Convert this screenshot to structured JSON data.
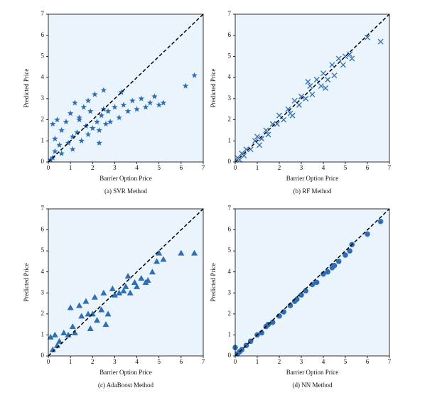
{
  "chart_data": [
    {
      "type": "scatter",
      "marker": "star",
      "color": "#2f6db5",
      "identity_line": true,
      "xlabel": "Barrier Option Price",
      "ylabel": "Predicted Price",
      "caption": "(a) SVR Method",
      "xlim": [
        0,
        7
      ],
      "ylim": [
        0,
        7
      ],
      "xticks": [
        0,
        1,
        2,
        3,
        4,
        5,
        6,
        7
      ],
      "yticks": [
        0,
        1,
        2,
        3,
        4,
        5,
        6,
        7
      ],
      "x": [
        0.1,
        0.2,
        0.3,
        0.4,
        0.5,
        0.6,
        0.8,
        0.9,
        1.0,
        1.1,
        1.2,
        1.3,
        1.4,
        1.5,
        1.6,
        1.7,
        1.8,
        1.9,
        2.0,
        2.1,
        2.2,
        2.3,
        2.4,
        2.5,
        2.6,
        2.7,
        2.8,
        3.0,
        3.2,
        3.4,
        3.6,
        3.8,
        4.0,
        4.2,
        4.4,
        4.6,
        4.8,
        5.0,
        5.2,
        1.1,
        1.8,
        2.3,
        0.3,
        0.6,
        2.5,
        3.3,
        6.2,
        6.6,
        0.2,
        1.4
      ],
      "y": [
        0.1,
        1.8,
        0.5,
        2.0,
        0.8,
        1.5,
        1.9,
        0.9,
        2.3,
        1.2,
        2.8,
        1.4,
        2.1,
        1.0,
        2.6,
        1.7,
        1.3,
        2.4,
        1.6,
        3.2,
        1.9,
        1.5,
        2.2,
        3.4,
        1.8,
        2.4,
        1.9,
        2.6,
        2.1,
        2.7,
        2.4,
        2.9,
        2.5,
        3.0,
        2.6,
        2.8,
        3.1,
        2.7,
        2.8,
        0.6,
        2.9,
        0.9,
        1.1,
        0.4,
        2.5,
        3.3,
        3.6,
        4.1,
        0.2,
        2.0
      ]
    },
    {
      "type": "scatter",
      "marker": "x",
      "color": "#2f6db5",
      "identity_line": true,
      "xlabel": "Barrier Option Price",
      "ylabel": "Predicted Price",
      "caption": "(b) RF Method",
      "xlim": [
        0,
        7
      ],
      "ylim": [
        0,
        7
      ],
      "xticks": [
        0,
        1,
        2,
        3,
        4,
        5,
        6,
        7
      ],
      "yticks": [
        0,
        1,
        2,
        3,
        4,
        5,
        6,
        7
      ],
      "x": [
        0.1,
        0.2,
        0.3,
        0.5,
        0.7,
        0.9,
        1.0,
        1.2,
        1.4,
        1.5,
        1.7,
        1.9,
        2.0,
        2.2,
        2.4,
        2.5,
        2.7,
        2.9,
        3.0,
        3.2,
        3.4,
        3.5,
        3.7,
        3.9,
        4.0,
        4.2,
        4.4,
        4.5,
        4.7,
        4.9,
        5.0,
        5.2,
        5.3,
        1.1,
        2.6,
        3.3,
        4.1,
        6.0,
        6.6,
        0.4
      ],
      "y": [
        0.2,
        0.1,
        0.4,
        0.6,
        0.6,
        1.0,
        1.2,
        1.1,
        1.5,
        1.3,
        1.8,
        1.8,
        2.2,
        2.0,
        2.5,
        2.3,
        2.9,
        2.7,
        3.1,
        3.0,
        3.6,
        3.2,
        3.9,
        3.6,
        4.2,
        3.9,
        4.6,
        4.1,
        4.9,
        4.6,
        5.0,
        5.1,
        4.9,
        0.8,
        2.2,
        3.8,
        3.5,
        5.9,
        5.7,
        0.3
      ]
    },
    {
      "type": "scatter",
      "marker": "triangle",
      "color": "#2f6db5",
      "identity_line": true,
      "xlabel": "Barrier Option Price",
      "ylabel": "Predicted Price",
      "caption": "(c) AdaBoost Method",
      "xlim": [
        0,
        7
      ],
      "ylim": [
        0,
        7
      ],
      "xticks": [
        0,
        1,
        2,
        3,
        4,
        5,
        6,
        7
      ],
      "yticks": [
        0,
        1,
        2,
        3,
        4,
        5,
        6,
        7
      ],
      "x": [
        0.1,
        0.2,
        0.3,
        0.5,
        0.7,
        0.9,
        1.0,
        1.2,
        1.4,
        1.5,
        1.7,
        1.9,
        2.0,
        2.2,
        2.4,
        2.5,
        2.7,
        2.9,
        3.0,
        3.2,
        3.4,
        3.5,
        3.7,
        3.9,
        4.0,
        4.2,
        4.4,
        4.5,
        4.7,
        4.9,
        5.0,
        5.2,
        1.1,
        1.8,
        2.1,
        2.6,
        3.6,
        6.0,
        6.6,
        0.4
      ],
      "y": [
        0.9,
        0.3,
        1.0,
        0.7,
        1.1,
        1.0,
        2.3,
        1.1,
        2.4,
        1.9,
        2.6,
        1.3,
        2.0,
        1.7,
        2.2,
        3.0,
        2.0,
        3.2,
        2.9,
        3.0,
        3.1,
        3.3,
        3.0,
        3.5,
        3.3,
        3.7,
        3.5,
        3.6,
        4.0,
        4.5,
        4.9,
        4.6,
        1.4,
        2.0,
        2.8,
        1.5,
        3.8,
        4.9,
        4.9,
        0.5
      ]
    },
    {
      "type": "scatter",
      "marker": "circle",
      "color": "#2f6db5",
      "identity_line": true,
      "xlabel": "Barrier Option Price",
      "ylabel": "Predicted Price",
      "caption": "(d) NN Method",
      "xlim": [
        0,
        7
      ],
      "ylim": [
        0,
        7
      ],
      "xticks": [
        0,
        1,
        2,
        3,
        4,
        5,
        6,
        7
      ],
      "yticks": [
        0,
        1,
        2,
        3,
        4,
        5,
        6,
        7
      ],
      "x": [
        0,
        0.1,
        0.3,
        0.5,
        0.7,
        1.0,
        1.2,
        1.5,
        1.7,
        2.0,
        2.2,
        2.5,
        2.7,
        3.0,
        3.2,
        3.5,
        3.7,
        4.0,
        4.2,
        4.5,
        4.7,
        5.0,
        5.2,
        5.3,
        6.0,
        6.6,
        0.2,
        1.4,
        2.8,
        4.4
      ],
      "y": [
        0.4,
        0.1,
        0.3,
        0.5,
        0.7,
        1.0,
        1.1,
        1.5,
        1.6,
        1.9,
        2.1,
        2.4,
        2.6,
        2.9,
        3.1,
        3.4,
        3.5,
        3.9,
        4.0,
        4.3,
        4.5,
        4.8,
        5.0,
        5.3,
        5.8,
        6.4,
        0.2,
        1.4,
        2.7,
        4.2
      ]
    }
  ]
}
